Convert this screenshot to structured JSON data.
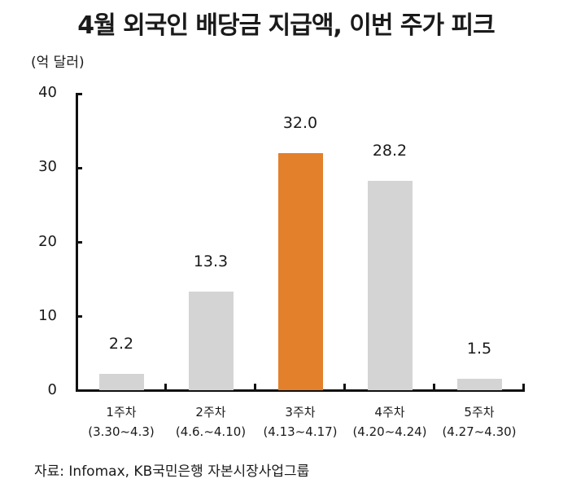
{
  "chart_data": {
    "type": "bar",
    "title": "4월 외국인 배당금 지급액, 이번 주가 피크",
    "ylabel": "(억 달러)",
    "xlabel": "",
    "ylim": [
      0,
      40
    ],
    "yticks": [
      0,
      10,
      20,
      30,
      40
    ],
    "grid": false,
    "categories": [
      "1주차",
      "2주차",
      "3주차",
      "4주차",
      "5주차"
    ],
    "category_ranges": [
      "(3.30~4.3)",
      "(4.6.~4.10)",
      "(4.13~4.17)",
      "(4.20~4.24)",
      "(4.27~4.30)"
    ],
    "values": [
      2.2,
      13.3,
      32.0,
      28.2,
      1.5
    ],
    "value_labels": [
      "2.2",
      "13.3",
      "32.0",
      "28.2",
      "1.5"
    ],
    "highlight_index": 2,
    "colors": {
      "default": "#d4d4d4",
      "highlight": "#e2802b"
    },
    "source": "자료: Infomax, KB국민은행 자본시장사업그룹"
  }
}
